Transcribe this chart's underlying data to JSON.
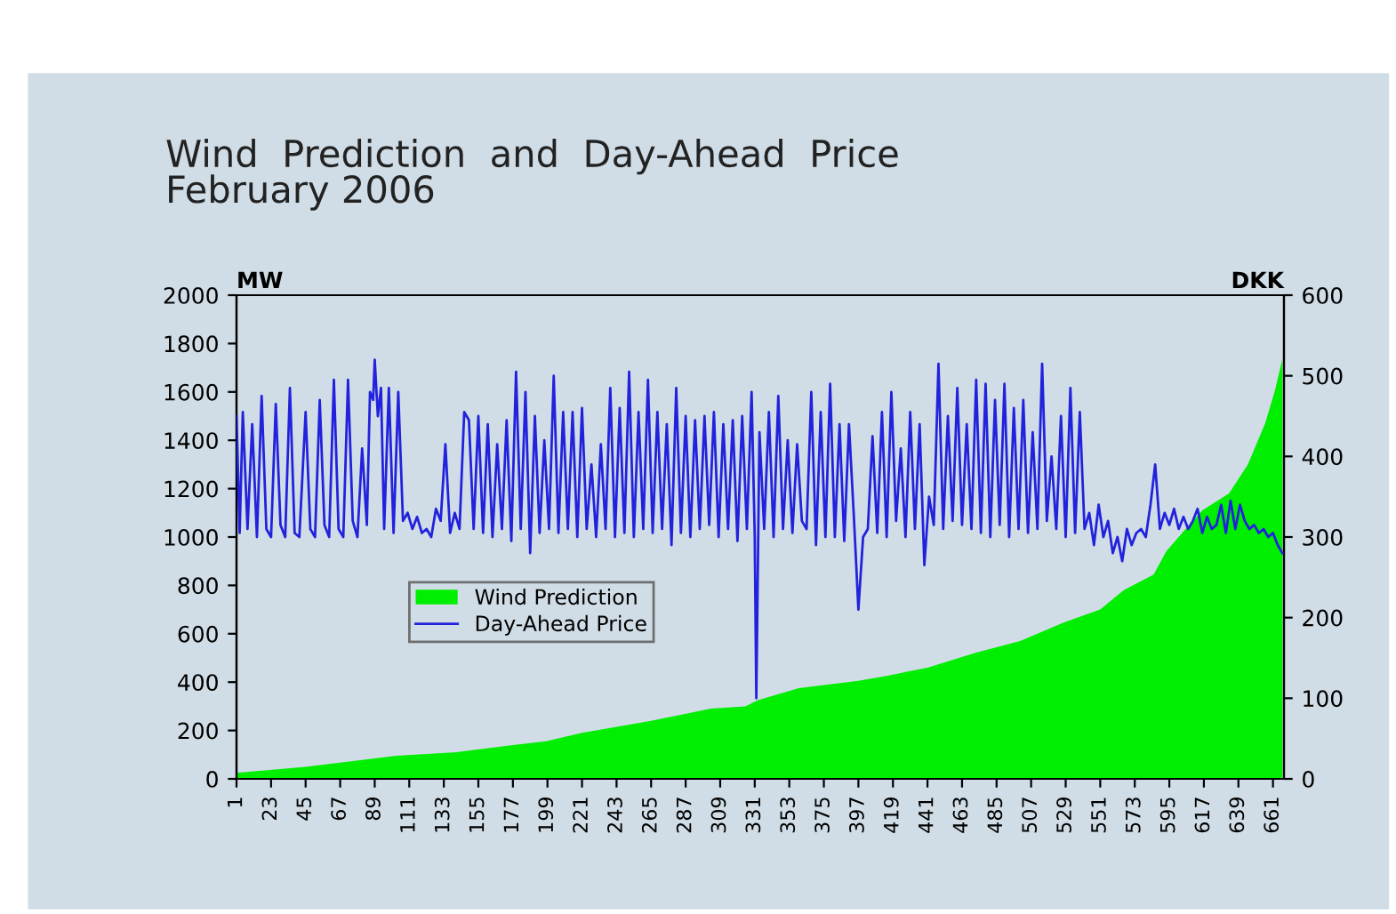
{
  "chart_data": {
    "type": "area",
    "title": "Wind  Prediction  and  Day-Ahead  Price\nFebruary 2006",
    "ylabel": "MW",
    "y2label": "DKK",
    "xlim": [
      1,
      668
    ],
    "xticks": [
      1,
      23,
      45,
      67,
      89,
      111,
      133,
      155,
      177,
      199,
      221,
      243,
      265,
      287,
      309,
      331,
      353,
      375,
      397,
      419,
      441,
      463,
      485,
      507,
      529,
      551,
      573,
      595,
      617,
      639,
      661
    ],
    "ylim": [
      0,
      2000
    ],
    "yticks": [
      0,
      200,
      400,
      600,
      800,
      1000,
      1200,
      1400,
      1600,
      1800,
      2000
    ],
    "y2lim": [
      0,
      600
    ],
    "y2ticks": [
      0,
      100,
      200,
      300,
      400,
      500,
      600
    ],
    "grid": false,
    "legend": "center left",
    "series": [
      {
        "name": "Wind Prediction",
        "color": "#00ee00",
        "x": [
          1,
          45,
          89,
          103,
          141,
          177,
          198,
          221,
          265,
          303,
          325,
          333,
          359,
          397,
          415,
          441,
          472,
          500,
          528,
          551,
          566,
          585,
          593,
          605,
          616,
          633,
          645,
          656,
          662,
          667
        ],
        "values": [
          25,
          50,
          85,
          96,
          110,
          140,
          155,
          190,
          240,
          290,
          300,
          325,
          375,
          405,
          426,
          460,
          522,
          570,
          647,
          700,
          780,
          845,
          940,
          1030,
          1110,
          1180,
          1300,
          1470,
          1600,
          1735
        ]
      },
      {
        "name": "Day-Ahead Price",
        "type": "line",
        "axis": "y2",
        "color": "#2222dd",
        "x": [
          1,
          3,
          5,
          8,
          11,
          14,
          17,
          20,
          23,
          26,
          29,
          32,
          35,
          38,
          41,
          45,
          48,
          51,
          54,
          57,
          60,
          63,
          66,
          69,
          72,
          75,
          78,
          81,
          84,
          86,
          88,
          89,
          91,
          93,
          95,
          98,
          101,
          104,
          107,
          110,
          113,
          116,
          119,
          122,
          125,
          128,
          131,
          134,
          137,
          140,
          143,
          146,
          149,
          152,
          155,
          158,
          161,
          164,
          167,
          170,
          173,
          176,
          179,
          182,
          185,
          188,
          191,
          194,
          197,
          200,
          203,
          206,
          209,
          212,
          215,
          218,
          221,
          224,
          227,
          230,
          233,
          236,
          239,
          242,
          245,
          248,
          251,
          254,
          257,
          260,
          263,
          266,
          269,
          272,
          275,
          278,
          281,
          284,
          287,
          290,
          293,
          296,
          299,
          302,
          305,
          308,
          311,
          314,
          317,
          320,
          323,
          326,
          329,
          331,
          332,
          334,
          337,
          340,
          343,
          346,
          349,
          352,
          355,
          358,
          361,
          364,
          367,
          370,
          373,
          376,
          379,
          382,
          385,
          388,
          391,
          394,
          397,
          400,
          403,
          406,
          409,
          412,
          415,
          418,
          421,
          424,
          427,
          430,
          433,
          436,
          439,
          442,
          445,
          448,
          451,
          454,
          457,
          460,
          463,
          466,
          469,
          472,
          475,
          478,
          481,
          484,
          487,
          490,
          493,
          496,
          499,
          502,
          505,
          508,
          511,
          514,
          517,
          520,
          523,
          526,
          529,
          532,
          535,
          538,
          541,
          544,
          547,
          550,
          553,
          556,
          559,
          562,
          565,
          568,
          571,
          574,
          577,
          580,
          583,
          586,
          589,
          592,
          595,
          598,
          601,
          604,
          607,
          610,
          613,
          616,
          619,
          622,
          625,
          628,
          631,
          634,
          637,
          640,
          643,
          646,
          649,
          652,
          655,
          658,
          661,
          664,
          667
        ],
        "values": [
          450,
          305,
          455,
          310,
          440,
          300,
          475,
          310,
          300,
          465,
          315,
          300,
          485,
          305,
          300,
          455,
          310,
          300,
          470,
          315,
          300,
          495,
          310,
          300,
          495,
          320,
          300,
          410,
          315,
          480,
          470,
          520,
          450,
          485,
          310,
          485,
          305,
          480,
          320,
          330,
          310,
          325,
          305,
          310,
          300,
          335,
          320,
          415,
          305,
          330,
          310,
          455,
          445,
          310,
          450,
          305,
          440,
          300,
          415,
          310,
          445,
          295,
          505,
          310,
          480,
          280,
          450,
          305,
          420,
          310,
          500,
          305,
          455,
          310,
          455,
          300,
          460,
          310,
          390,
          300,
          415,
          310,
          485,
          300,
          460,
          305,
          505,
          300,
          455,
          310,
          495,
          305,
          455,
          310,
          440,
          290,
          485,
          305,
          450,
          300,
          445,
          310,
          450,
          315,
          455,
          300,
          440,
          310,
          445,
          295,
          450,
          310,
          480,
          300,
          100,
          430,
          310,
          455,
          300,
          475,
          310,
          420,
          305,
          415,
          320,
          310,
          480,
          290,
          455,
          300,
          490,
          300,
          440,
          295,
          440,
          330,
          210,
          300,
          310,
          425,
          305,
          455,
          300,
          480,
          320,
          410,
          300,
          455,
          310,
          440,
          265,
          350,
          315,
          515,
          310,
          450,
          320,
          485,
          315,
          440,
          310,
          495,
          305,
          490,
          300,
          470,
          315,
          490,
          300,
          460,
          310,
          470,
          305,
          430,
          310,
          515,
          320,
          400,
          310,
          450,
          300,
          485,
          305,
          455,
          310,
          330,
          290,
          340,
          300,
          320,
          280,
          300,
          270,
          310,
          290,
          305,
          310,
          300,
          340,
          390,
          310,
          330,
          315,
          335,
          310,
          325,
          310,
          320,
          335,
          305,
          325,
          310,
          315,
          340,
          305,
          345,
          310,
          340,
          320,
          310,
          315,
          305,
          310,
          300,
          305,
          290,
          280
        ]
      }
    ]
  }
}
